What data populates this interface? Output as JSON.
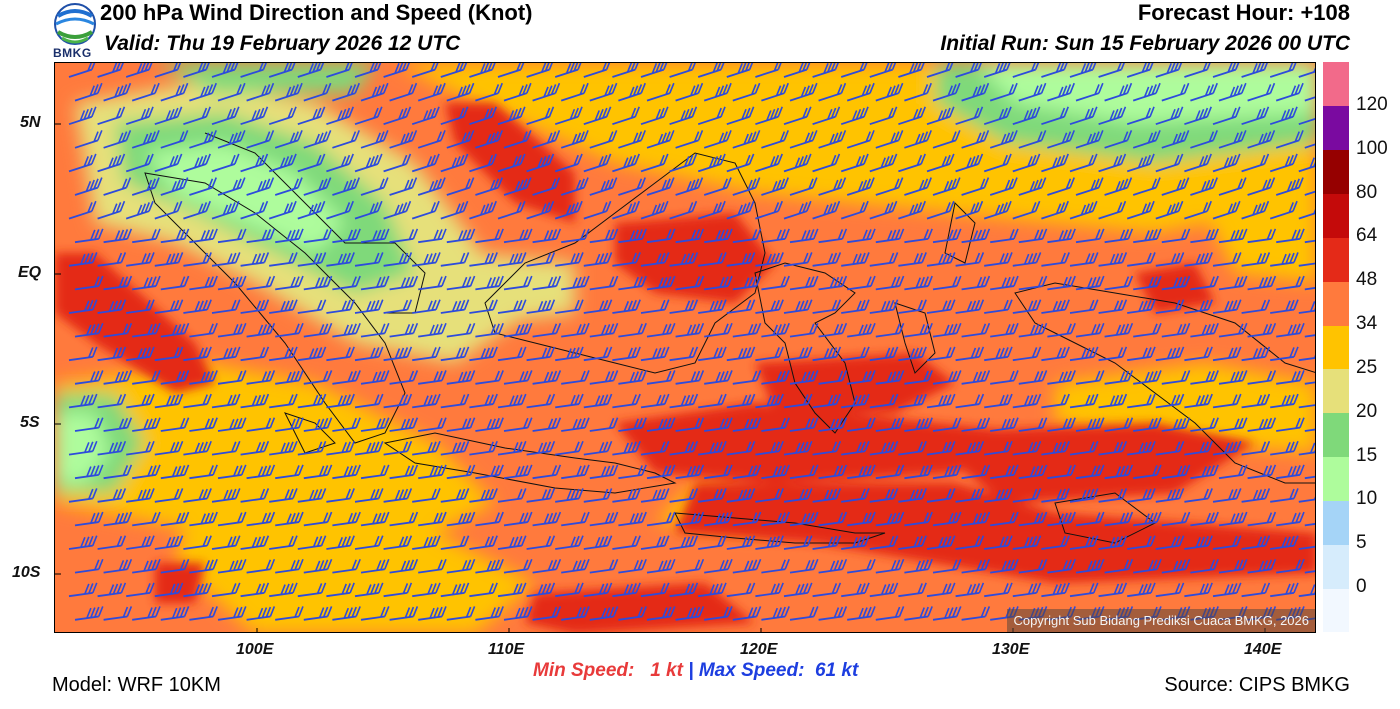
{
  "header": {
    "logo_text": "BMKG",
    "title": "200 hPa Wind Direction and Speed (Knot)",
    "valid": "Valid: Thu 19 February 2026 12 UTC",
    "forecast_hour": "Forecast Hour: +108",
    "initial_run": "Initial Run: Sun 15 February 2026 00 UTC"
  },
  "axes": {
    "y_ticks": [
      "5N",
      "EQ",
      "5S",
      "10S"
    ],
    "x_ticks": [
      "100E",
      "110E",
      "120E",
      "130E",
      "140E"
    ]
  },
  "colorbar": {
    "labels": [
      "0",
      "5",
      "10",
      "15",
      "20",
      "25",
      "34",
      "48",
      "64",
      "80",
      "100",
      "120"
    ],
    "colors": [
      "#f2f8ff",
      "#d6ecfc",
      "#a5d4f7",
      "#aefc9c",
      "#7fd97a",
      "#e6e07a",
      "#ffc300",
      "#ff7a3d",
      "#e42a18",
      "#c40a0a",
      "#960000",
      "#7a0aa0",
      "#f26a8a"
    ]
  },
  "stats": {
    "min_label": "Min Speed:",
    "min_value": "1 kt",
    "separator": "|",
    "max_label": "Max Speed:",
    "max_value": "61 kt"
  },
  "footer": {
    "model": "Model: WRF 10KM",
    "source": "Source: CIPS BMKG",
    "copyright": "Copyright Sub Bidang Prediksi Cuaca BMKG, 2026"
  }
}
